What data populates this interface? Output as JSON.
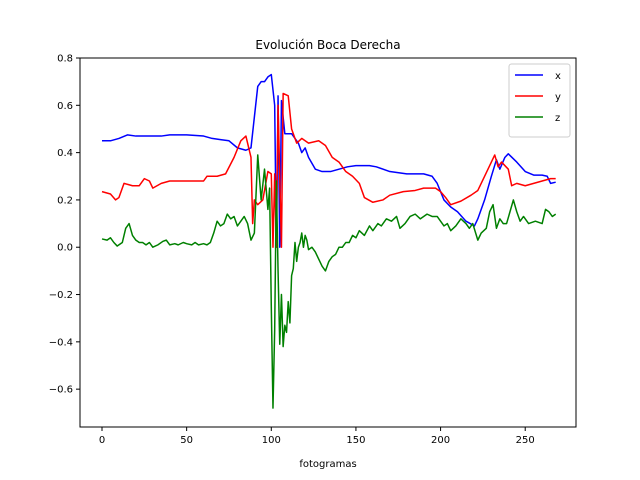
{
  "chart_data": {
    "type": "line",
    "title": "Evolución Boca Derecha",
    "xlabel": "fotogramas",
    "ylabel": "",
    "xlim": [
      -13,
      280
    ],
    "ylim": [
      -0.76,
      0.8
    ],
    "xticks": [
      0,
      50,
      100,
      150,
      200,
      250
    ],
    "yticks": [
      -0.6,
      -0.4,
      -0.2,
      0.0,
      0.2,
      0.4,
      0.6,
      0.8
    ],
    "xtick_labels": [
      "0",
      "50",
      "100",
      "150",
      "200",
      "250"
    ],
    "ytick_labels": [
      "−0.6",
      "−0.4",
      "−0.2",
      "0.0",
      "0.2",
      "0.4",
      "0.6",
      "0.8"
    ],
    "grid": false,
    "legend_position": "top-right",
    "series": [
      {
        "name": "x",
        "color": "#0000ff",
        "points": [
          [
            0,
            0.45
          ],
          [
            5,
            0.45
          ],
          [
            10,
            0.46
          ],
          [
            15,
            0.475
          ],
          [
            20,
            0.47
          ],
          [
            30,
            0.47
          ],
          [
            35,
            0.47
          ],
          [
            40,
            0.475
          ],
          [
            50,
            0.475
          ],
          [
            60,
            0.47
          ],
          [
            65,
            0.46
          ],
          [
            70,
            0.455
          ],
          [
            75,
            0.45
          ],
          [
            80,
            0.42
          ],
          [
            85,
            0.41
          ],
          [
            88,
            0.42
          ],
          [
            90,
            0.55
          ],
          [
            92,
            0.68
          ],
          [
            94,
            0.7
          ],
          [
            96,
            0.7
          ],
          [
            98,
            0.72
          ],
          [
            100,
            0.73
          ],
          [
            102,
            0.6
          ],
          [
            103,
            0.0
          ],
          [
            104,
            0.64
          ],
          [
            105,
            0.0
          ],
          [
            106,
            0.62
          ],
          [
            108,
            0.48
          ],
          [
            112,
            0.48
          ],
          [
            116,
            0.44
          ],
          [
            118,
            0.4
          ],
          [
            120,
            0.42
          ],
          [
            122,
            0.38
          ],
          [
            126,
            0.33
          ],
          [
            130,
            0.32
          ],
          [
            135,
            0.32
          ],
          [
            140,
            0.33
          ],
          [
            145,
            0.34
          ],
          [
            150,
            0.345
          ],
          [
            158,
            0.345
          ],
          [
            162,
            0.34
          ],
          [
            170,
            0.32
          ],
          [
            180,
            0.31
          ],
          [
            190,
            0.31
          ],
          [
            195,
            0.3
          ],
          [
            198,
            0.27
          ],
          [
            202,
            0.2
          ],
          [
            206,
            0.17
          ],
          [
            210,
            0.15
          ],
          [
            215,
            0.11
          ],
          [
            220,
            0.09
          ],
          [
            222,
            0.12
          ],
          [
            226,
            0.2
          ],
          [
            230,
            0.3
          ],
          [
            233,
            0.37
          ],
          [
            235,
            0.33
          ],
          [
            238,
            0.38
          ],
          [
            240,
            0.395
          ],
          [
            245,
            0.36
          ],
          [
            250,
            0.32
          ],
          [
            255,
            0.305
          ],
          [
            260,
            0.305
          ],
          [
            263,
            0.3
          ],
          [
            265,
            0.27
          ],
          [
            268,
            0.275
          ]
        ]
      },
      {
        "name": "y",
        "color": "#ff0000",
        "points": [
          [
            0,
            0.235
          ],
          [
            5,
            0.225
          ],
          [
            8,
            0.2
          ],
          [
            10,
            0.21
          ],
          [
            13,
            0.27
          ],
          [
            18,
            0.26
          ],
          [
            22,
            0.26
          ],
          [
            25,
            0.29
          ],
          [
            28,
            0.28
          ],
          [
            30,
            0.25
          ],
          [
            35,
            0.27
          ],
          [
            40,
            0.28
          ],
          [
            50,
            0.28
          ],
          [
            55,
            0.28
          ],
          [
            60,
            0.28
          ],
          [
            62,
            0.3
          ],
          [
            68,
            0.3
          ],
          [
            73,
            0.31
          ],
          [
            78,
            0.38
          ],
          [
            82,
            0.45
          ],
          [
            85,
            0.47
          ],
          [
            88,
            0.38
          ],
          [
            89,
            0.1
          ],
          [
            90,
            0.2
          ],
          [
            92,
            0.18
          ],
          [
            95,
            0.2
          ],
          [
            98,
            0.32
          ],
          [
            100,
            0.31
          ],
          [
            101,
            0.0
          ],
          [
            102,
            0.31
          ],
          [
            103,
            0.0
          ],
          [
            104,
            0.6
          ],
          [
            106,
            0.0
          ],
          [
            107,
            0.65
          ],
          [
            110,
            0.64
          ],
          [
            112,
            0.5
          ],
          [
            115,
            0.44
          ],
          [
            118,
            0.46
          ],
          [
            122,
            0.44
          ],
          [
            128,
            0.45
          ],
          [
            132,
            0.43
          ],
          [
            136,
            0.38
          ],
          [
            140,
            0.36
          ],
          [
            144,
            0.32
          ],
          [
            148,
            0.3
          ],
          [
            152,
            0.27
          ],
          [
            155,
            0.21
          ],
          [
            160,
            0.19
          ],
          [
            166,
            0.2
          ],
          [
            170,
            0.22
          ],
          [
            178,
            0.235
          ],
          [
            185,
            0.24
          ],
          [
            190,
            0.25
          ],
          [
            197,
            0.25
          ],
          [
            200,
            0.235
          ],
          [
            203,
            0.21
          ],
          [
            206,
            0.18
          ],
          [
            212,
            0.195
          ],
          [
            218,
            0.22
          ],
          [
            222,
            0.24
          ],
          [
            226,
            0.3
          ],
          [
            230,
            0.36
          ],
          [
            232,
            0.39
          ],
          [
            234,
            0.34
          ],
          [
            236,
            0.36
          ],
          [
            240,
            0.33
          ],
          [
            242,
            0.26
          ],
          [
            245,
            0.27
          ],
          [
            250,
            0.26
          ],
          [
            255,
            0.27
          ],
          [
            260,
            0.28
          ],
          [
            265,
            0.29
          ],
          [
            268,
            0.29
          ]
        ]
      },
      {
        "name": "z",
        "color": "#008000",
        "points": [
          [
            0,
            0.035
          ],
          [
            3,
            0.03
          ],
          [
            5,
            0.04
          ],
          [
            7,
            0.02
          ],
          [
            9,
            0.005
          ],
          [
            12,
            0.02
          ],
          [
            14,
            0.08
          ],
          [
            16,
            0.1
          ],
          [
            18,
            0.05
          ],
          [
            20,
            0.03
          ],
          [
            22,
            0.02
          ],
          [
            24,
            0.02
          ],
          [
            26,
            0.01
          ],
          [
            28,
            0.02
          ],
          [
            30,
            0.0
          ],
          [
            33,
            0.01
          ],
          [
            36,
            0.025
          ],
          [
            38,
            0.03
          ],
          [
            40,
            0.01
          ],
          [
            43,
            0.015
          ],
          [
            45,
            0.01
          ],
          [
            48,
            0.02
          ],
          [
            50,
            0.015
          ],
          [
            53,
            0.01
          ],
          [
            55,
            0.02
          ],
          [
            57,
            0.01
          ],
          [
            60,
            0.015
          ],
          [
            62,
            0.01
          ],
          [
            64,
            0.02
          ],
          [
            66,
            0.06
          ],
          [
            68,
            0.11
          ],
          [
            70,
            0.09
          ],
          [
            72,
            0.1
          ],
          [
            74,
            0.14
          ],
          [
            76,
            0.12
          ],
          [
            78,
            0.13
          ],
          [
            80,
            0.09
          ],
          [
            82,
            0.11
          ],
          [
            84,
            0.13
          ],
          [
            86,
            0.1
          ],
          [
            88,
            0.03
          ],
          [
            90,
            0.06
          ],
          [
            92,
            0.39
          ],
          [
            94,
            0.2
          ],
          [
            96,
            0.33
          ],
          [
            98,
            0.16
          ],
          [
            99,
            0.25
          ],
          [
            100,
            -0.25
          ],
          [
            101,
            -0.68
          ],
          [
            102,
            -0.35
          ],
          [
            103,
            0.28
          ],
          [
            104,
            -0.1
          ],
          [
            105,
            -0.41
          ],
          [
            106,
            -0.2
          ],
          [
            107,
            -0.42
          ],
          [
            108,
            -0.33
          ],
          [
            109,
            -0.36
          ],
          [
            110,
            -0.23
          ],
          [
            111,
            -0.32
          ],
          [
            112,
            -0.12
          ],
          [
            113,
            -0.09
          ],
          [
            114,
            0.02
          ],
          [
            115,
            -0.06
          ],
          [
            116,
            0.0
          ],
          [
            117,
            0.02
          ],
          [
            118,
            0.06
          ],
          [
            119,
            0.0
          ],
          [
            120,
            0.05
          ],
          [
            121,
            0.03
          ],
          [
            122,
            -0.01
          ],
          [
            124,
            0.0
          ],
          [
            126,
            -0.02
          ],
          [
            128,
            -0.05
          ],
          [
            130,
            -0.08
          ],
          [
            132,
            -0.1
          ],
          [
            134,
            -0.06
          ],
          [
            136,
            -0.04
          ],
          [
            138,
            -0.03
          ],
          [
            140,
            0.0
          ],
          [
            142,
            0.0
          ],
          [
            144,
            0.02
          ],
          [
            146,
            0.02
          ],
          [
            148,
            0.05
          ],
          [
            150,
            0.04
          ],
          [
            152,
            0.07
          ],
          [
            155,
            0.05
          ],
          [
            158,
            0.09
          ],
          [
            160,
            0.07
          ],
          [
            163,
            0.1
          ],
          [
            165,
            0.09
          ],
          [
            168,
            0.12
          ],
          [
            171,
            0.11
          ],
          [
            174,
            0.13
          ],
          [
            176,
            0.08
          ],
          [
            179,
            0.1
          ],
          [
            182,
            0.13
          ],
          [
            185,
            0.14
          ],
          [
            188,
            0.12
          ],
          [
            192,
            0.14
          ],
          [
            195,
            0.13
          ],
          [
            198,
            0.13
          ],
          [
            200,
            0.11
          ],
          [
            202,
            0.09
          ],
          [
            204,
            0.1
          ],
          [
            206,
            0.07
          ],
          [
            209,
            0.09
          ],
          [
            212,
            0.12
          ],
          [
            215,
            0.1
          ],
          [
            217,
            0.08
          ],
          [
            219,
            0.1
          ],
          [
            222,
            0.03
          ],
          [
            224,
            0.06
          ],
          [
            227,
            0.08
          ],
          [
            229,
            0.15
          ],
          [
            231,
            0.18
          ],
          [
            233,
            0.08
          ],
          [
            235,
            0.12
          ],
          [
            237,
            0.1
          ],
          [
            239,
            0.1
          ],
          [
            241,
            0.15
          ],
          [
            243,
            0.2
          ],
          [
            245,
            0.15
          ],
          [
            247,
            0.11
          ],
          [
            249,
            0.13
          ],
          [
            252,
            0.1
          ],
          [
            256,
            0.11
          ],
          [
            260,
            0.1
          ],
          [
            262,
            0.16
          ],
          [
            264,
            0.15
          ],
          [
            266,
            0.13
          ],
          [
            268,
            0.14
          ]
        ]
      }
    ]
  }
}
